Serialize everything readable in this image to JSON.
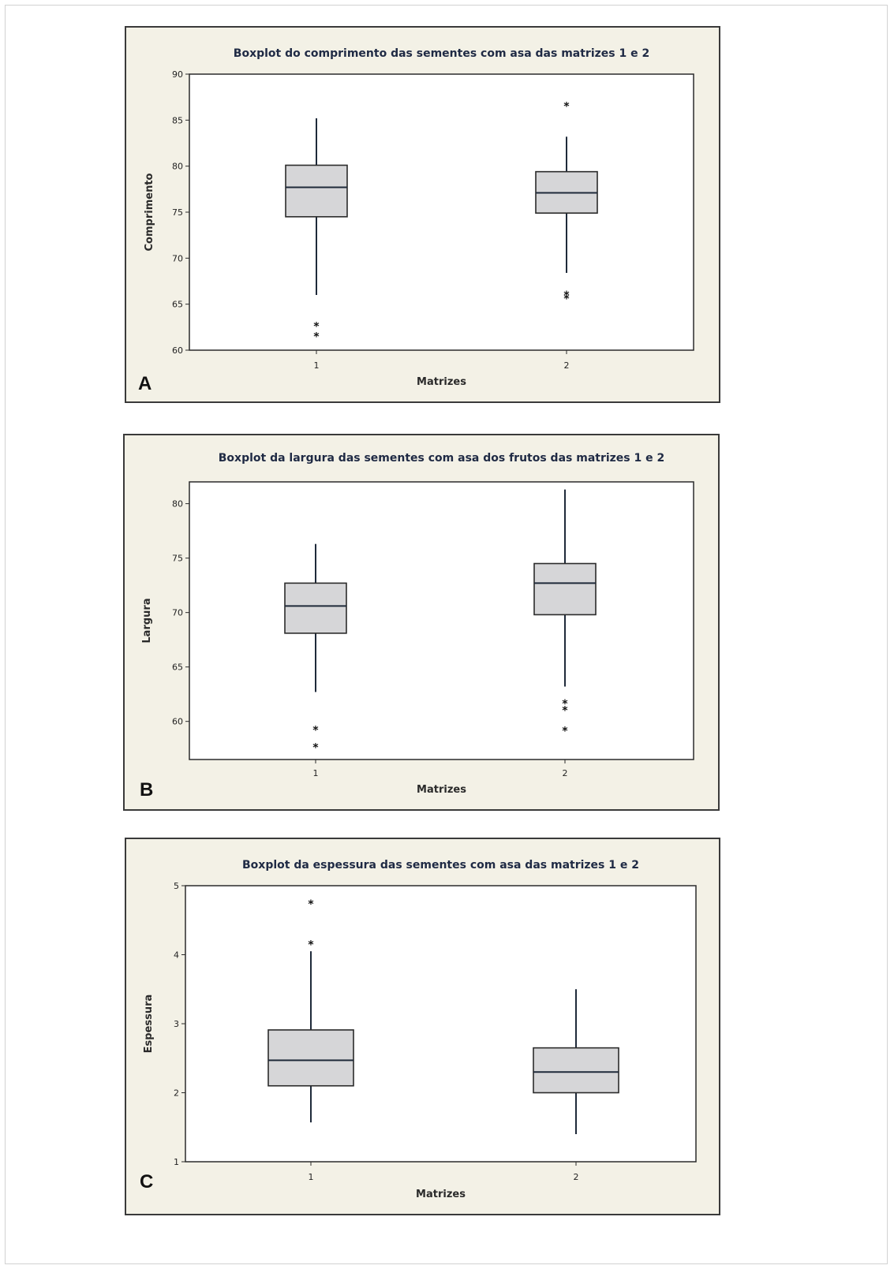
{
  "chart_data": [
    {
      "type": "boxplot",
      "panel_label": "A",
      "title": "Boxplot do comprimento das sementes com asa das matrizes 1 e 2",
      "xlabel": "Matrizes",
      "ylabel": "Comprimento",
      "categories": [
        "1",
        "2"
      ],
      "ylim": [
        60,
        90
      ],
      "yticks": [
        60,
        65,
        70,
        75,
        80,
        85,
        90
      ],
      "boxes": [
        {
          "name": "1",
          "whisker_low": 66,
          "q1": 74.5,
          "median": 77.7,
          "q3": 80.1,
          "whisker_high": 85.2,
          "outliers": [
            62.7,
            61.6
          ]
        },
        {
          "name": "2",
          "whisker_low": 68.4,
          "q1": 74.9,
          "median": 77.1,
          "q3": 79.4,
          "whisker_high": 83.2,
          "outliers": [
            86.6,
            66.1,
            65.7
          ]
        }
      ]
    },
    {
      "type": "boxplot",
      "panel_label": "B",
      "title": "Boxplot da largura das sementes com asa dos frutos das matrizes 1 e 2",
      "xlabel": "Matrizes",
      "ylabel": "Largura",
      "categories": [
        "1",
        "2"
      ],
      "ylim": [
        56.5,
        82
      ],
      "yticks": [
        60,
        65,
        70,
        75,
        80
      ],
      "boxes": [
        {
          "name": "1",
          "whisker_low": 62.7,
          "q1": 68.1,
          "median": 70.6,
          "q3": 72.7,
          "whisker_high": 76.3,
          "outliers": [
            59.3,
            57.7
          ]
        },
        {
          "name": "2",
          "whisker_low": 63.2,
          "q1": 69.8,
          "median": 72.7,
          "q3": 74.5,
          "whisker_high": 81.3,
          "outliers": [
            61.7,
            61.1,
            59.2
          ]
        }
      ]
    },
    {
      "type": "boxplot",
      "panel_label": "C",
      "title": "Boxplot da espessura das sementes com asa das matrizes 1 e 2",
      "xlabel": "Matrizes",
      "ylabel": "Espessura",
      "categories": [
        "1",
        "2"
      ],
      "ylim": [
        1,
        5
      ],
      "yticks": [
        1,
        2,
        3,
        4,
        5
      ],
      "boxes": [
        {
          "name": "1",
          "whisker_low": 1.57,
          "q1": 2.1,
          "median": 2.47,
          "q3": 2.91,
          "whisker_high": 4.05,
          "outliers": [
            4.75,
            4.16
          ]
        },
        {
          "name": "2",
          "whisker_low": 1.4,
          "q1": 2.0,
          "median": 2.3,
          "q3": 2.65,
          "whisker_high": 3.5,
          "outliers": []
        }
      ]
    }
  ]
}
